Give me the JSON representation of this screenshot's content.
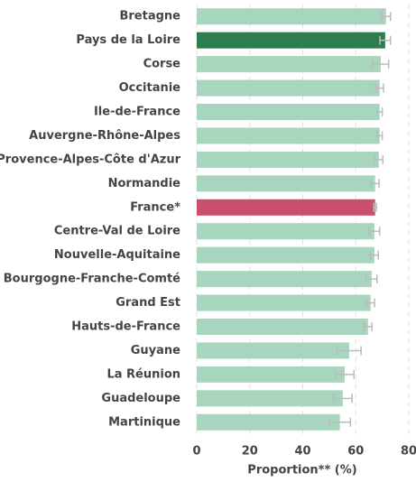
{
  "chart_data": {
    "type": "bar",
    "orientation": "horizontal",
    "categories": [
      "Bretagne",
      "Pays de la Loire",
      "Corse",
      "Occitanie",
      "Ile-de-France",
      "Auvergne-Rhône-Alpes",
      "Provence-Alpes-Côte d'Azur",
      "Normandie",
      "France*",
      "Centre-Val de Loire",
      "Nouvelle-Aquitaine",
      "Bourgogne-Franche-Comté",
      "Grand Est",
      "Hauts-de-France",
      "Guyane",
      "La Réunion",
      "Guadeloupe",
      "Martinique"
    ],
    "values": [
      71.4,
      71.1,
      69.4,
      69.0,
      69.0,
      69.0,
      68.7,
      67.3,
      67.3,
      67.0,
      67.0,
      66.0,
      65.6,
      64.6,
      57.5,
      55.8,
      55.1,
      54.0
    ],
    "errors": [
      1.7,
      2.0,
      3.0,
      1.5,
      1.0,
      1.0,
      1.5,
      1.5,
      0.5,
      2.0,
      1.5,
      2.0,
      1.5,
      1.5,
      4.5,
      3.5,
      3.5,
      4.0
    ],
    "colors": [
      "#a8d5bd",
      "#2e7d4f",
      "#a8d5bd",
      "#a8d5bd",
      "#a8d5bd",
      "#a8d5bd",
      "#a8d5bd",
      "#a8d5bd",
      "#c94f6d",
      "#a8d5bd",
      "#a8d5bd",
      "#a8d5bd",
      "#a8d5bd",
      "#a8d5bd",
      "#a8d5bd",
      "#a8d5bd",
      "#a8d5bd",
      "#a8d5bd"
    ],
    "error_color": "#bbbbbb",
    "x_label": "Proportion** (%)",
    "xlim": [
      0,
      80
    ],
    "xticks": [
      0,
      20,
      40,
      60,
      80
    ],
    "grid": true
  }
}
